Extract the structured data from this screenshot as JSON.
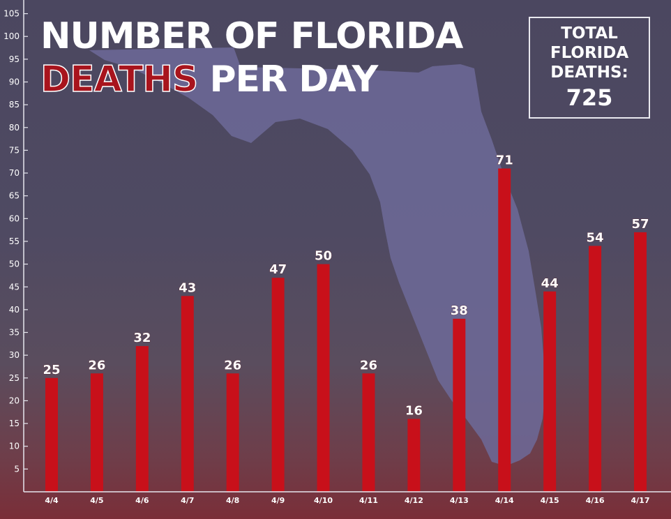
{
  "title": {
    "line1": "NUMBER OF FLORIDA",
    "line2_highlight": "DEATHS",
    "line2_rest": " PER DAY"
  },
  "total": {
    "line1": "TOTAL",
    "line2": "FLORIDA",
    "line3": "DEATHS:",
    "value": "725"
  },
  "colors": {
    "bar": "#c8101a",
    "title_highlight": "#a8141d",
    "text": "#ffffff",
    "map": "#6d6a99"
  },
  "chart_data": {
    "type": "bar",
    "categories": [
      "4/4",
      "4/5",
      "4/6",
      "4/7",
      "4/8",
      "4/9",
      "4/10",
      "4/11",
      "4/12",
      "4/13",
      "4/14",
      "4/15",
      "4/16",
      "4/17"
    ],
    "values": [
      25,
      26,
      32,
      43,
      26,
      47,
      50,
      26,
      16,
      38,
      71,
      44,
      54,
      57
    ],
    "ylim": [
      0,
      108
    ],
    "yticks": [
      5,
      10,
      15,
      20,
      25,
      30,
      35,
      40,
      45,
      50,
      55,
      60,
      65,
      70,
      75,
      80,
      85,
      90,
      95,
      100,
      105
    ],
    "grid": false,
    "legend": "none"
  }
}
